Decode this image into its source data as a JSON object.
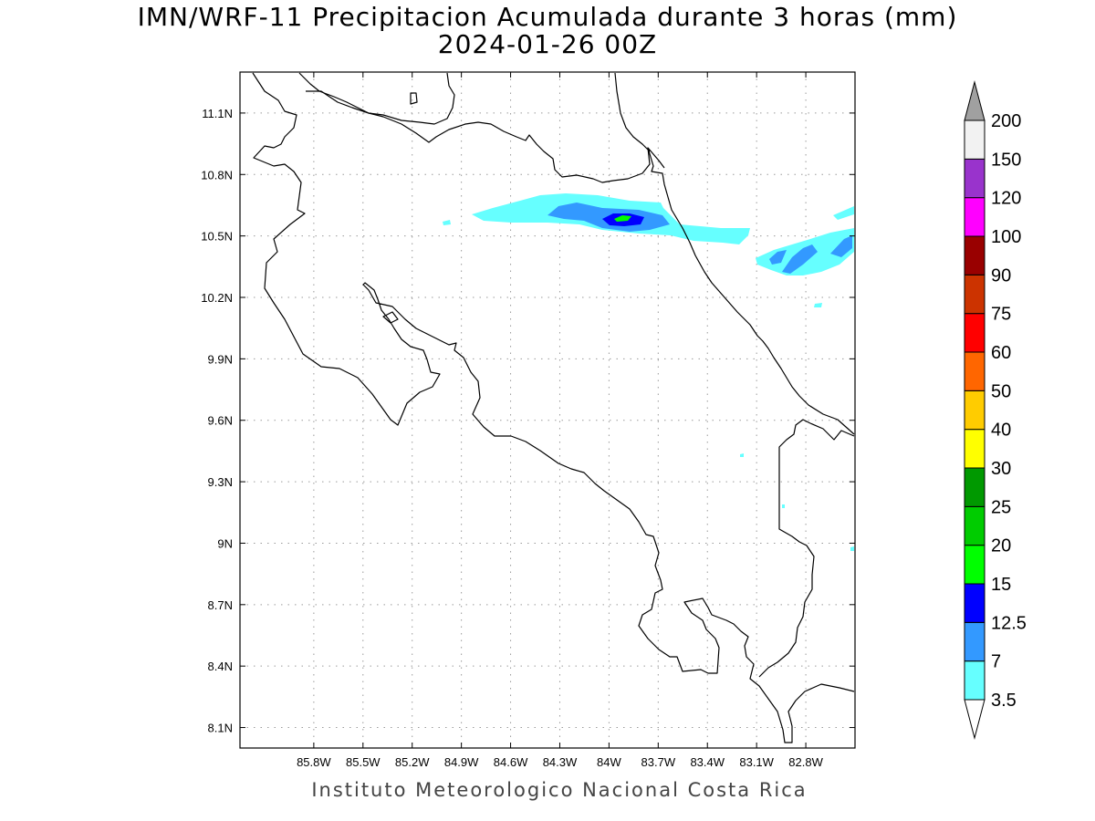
{
  "title": {
    "line1": "IMN/WRF-11 Precipitacion Acumulada durante 3 horas (mm)",
    "line2": "2024-01-26 00Z"
  },
  "footer": "Instituto Meteorologico Nacional Costa Rica",
  "map": {
    "lon_range": [
      -86.25,
      -82.5
    ],
    "lat_range": [
      8.0,
      11.3
    ],
    "lon_ticks": [
      {
        "value": -85.8,
        "label": "85.8W"
      },
      {
        "value": -85.5,
        "label": "85.5W"
      },
      {
        "value": -85.2,
        "label": "85.2W"
      },
      {
        "value": -84.9,
        "label": "84.9W"
      },
      {
        "value": -84.6,
        "label": "84.6W"
      },
      {
        "value": -84.3,
        "label": "84.3W"
      },
      {
        "value": -84.0,
        "label": "84W"
      },
      {
        "value": -83.7,
        "label": "83.7W"
      },
      {
        "value": -83.4,
        "label": "83.4W"
      },
      {
        "value": -83.1,
        "label": "83.1W"
      },
      {
        "value": -82.8,
        "label": "82.8W"
      }
    ],
    "lat_ticks": [
      {
        "value": 11.1,
        "label": "11.1N"
      },
      {
        "value": 10.8,
        "label": "10.8N"
      },
      {
        "value": 10.5,
        "label": "10.5N"
      },
      {
        "value": 10.2,
        "label": "10.2N"
      },
      {
        "value": 9.9,
        "label": "9.9N"
      },
      {
        "value": 9.6,
        "label": "9.6N"
      },
      {
        "value": 9.3,
        "label": "9.3N"
      },
      {
        "value": 9.0,
        "label": "9N"
      },
      {
        "value": 8.7,
        "label": "8.7N"
      },
      {
        "value": 8.4,
        "label": "8.4N"
      },
      {
        "value": 8.1,
        "label": "8.1N"
      }
    ],
    "grid": "dotted"
  },
  "colorbar": {
    "units": "mm",
    "upper_arrow_color": "#a0a0a0",
    "lower_arrow_color": "#ffffff",
    "bins": [
      {
        "color": "#66ffff"
      },
      {
        "color": "#3399ff"
      },
      {
        "color": "#0000ff"
      },
      {
        "color": "#00ff00"
      },
      {
        "color": "#00cc00"
      },
      {
        "color": "#009900"
      },
      {
        "color": "#ffff00"
      },
      {
        "color": "#ffcc00"
      },
      {
        "color": "#ff6600"
      },
      {
        "color": "#ff0000"
      },
      {
        "color": "#cc3300"
      },
      {
        "color": "#990000"
      },
      {
        "color": "#ff00ff"
      },
      {
        "color": "#9933cc"
      },
      {
        "color": "#f2f2f2"
      }
    ],
    "boundaries": [
      "3.5",
      "7",
      "12.5",
      "15",
      "20",
      "25",
      "30",
      "40",
      "50",
      "60",
      "75",
      "90",
      "100",
      "120",
      "150",
      "200"
    ]
  },
  "precip_colors": {
    "light": "#66ffff",
    "medium": "#3399ff",
    "heavy": "#0000ff",
    "peak": "#00ff00"
  }
}
